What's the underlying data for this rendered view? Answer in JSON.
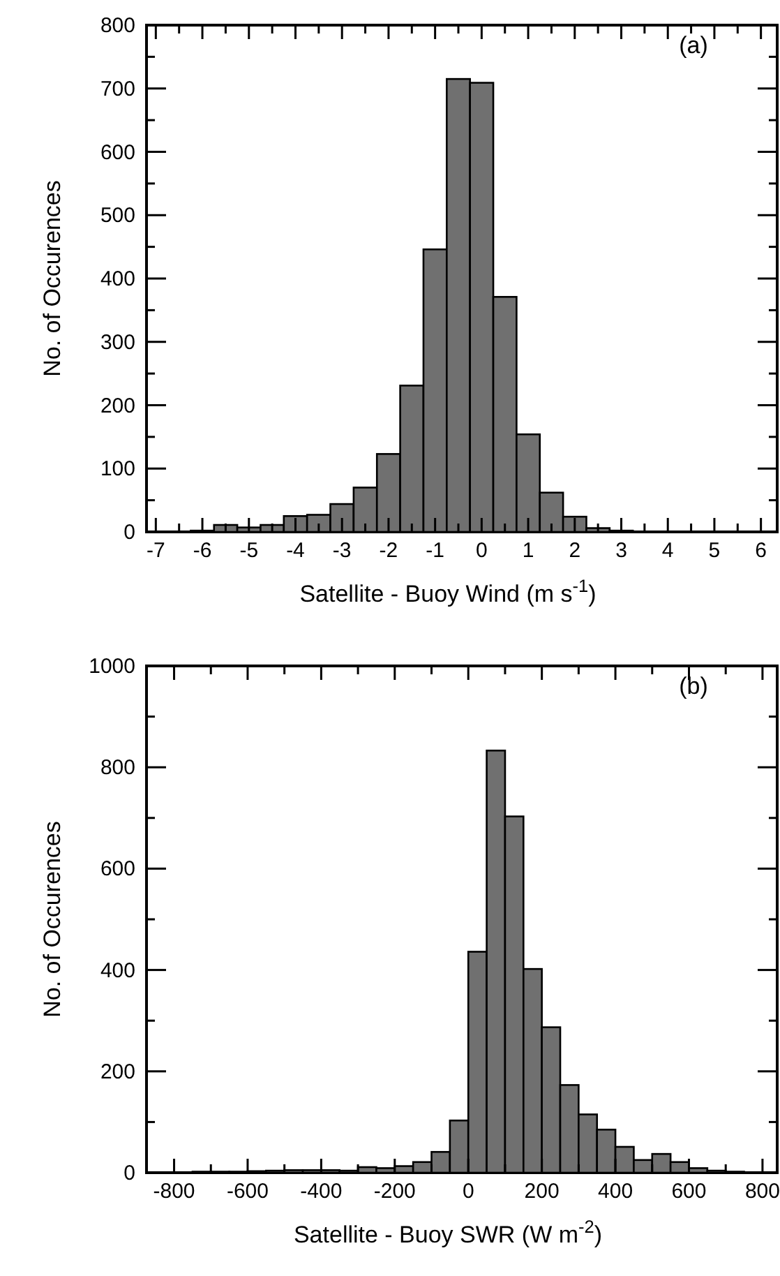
{
  "chart_data": [
    {
      "type": "histogram",
      "xlabel": "Satellite - Buoy Wind (m s$^{-1}$)",
      "ylabel": "No. of Occurences",
      "annotations": [
        "(a)"
      ],
      "color": "#707070",
      "bins": [
        -6.25,
        -5.75,
        -5.25,
        -4.75,
        -4.25,
        -3.75,
        -3.25,
        -2.75,
        -2.25,
        -1.75,
        -1.25,
        -0.75,
        -0.25,
        0.25,
        0.75,
        1.25,
        1.75,
        2.25,
        2.75,
        3.25
      ],
      "values": [
        2,
        11,
        7,
        11,
        25,
        27,
        44,
        70,
        123,
        231,
        446,
        715,
        709,
        371,
        154,
        62,
        24,
        6,
        2
      ],
      "xlim": [
        -7.2,
        6.35
      ],
      "xticks": [
        -7,
        {
          "value": -6.5,
          "label": null
        },
        -6,
        {
          "value": -5.5,
          "label": null
        },
        -5,
        {
          "value": -4.5,
          "label": null
        },
        -4,
        {
          "value": -3.5,
          "label": null
        },
        -3,
        {
          "value": -2.5,
          "label": null
        },
        -2,
        {
          "value": -1.5,
          "label": null
        },
        -1,
        {
          "value": -0.5,
          "label": null
        },
        0,
        {
          "value": 0.5,
          "label": null
        },
        1,
        {
          "value": 1.5,
          "label": null
        },
        2,
        {
          "value": 2.5,
          "label": null
        },
        3,
        {
          "value": 3.5,
          "label": null
        },
        4,
        {
          "value": 4.5,
          "label": null
        },
        5,
        {
          "value": 5.5,
          "label": null
        },
        6
      ],
      "ylim": [
        0,
        800
      ],
      "yticks": [
        0,
        {
          "value": 50,
          "label": null
        },
        100,
        {
          "value": 150,
          "label": null
        },
        200,
        {
          "value": 250,
          "label": null
        },
        300,
        {
          "value": 350,
          "label": null
        },
        400,
        {
          "value": 450,
          "label": null
        },
        500,
        {
          "value": 550,
          "label": null
        },
        600,
        {
          "value": 650,
          "label": null
        },
        700,
        {
          "value": 750,
          "label": null
        },
        800
      ]
    },
    {
      "type": "histogram",
      "xlabel": "Satellite - Buoy SWR (W m$^{-2}$)",
      "ylabel": "No. of Occurences",
      "annotations": [
        "(b)"
      ],
      "color": "#707070",
      "bins": [
        -750,
        -700,
        -650,
        -600,
        -550,
        -500,
        -450,
        -400,
        -350,
        -300,
        -250,
        -200,
        -150,
        -100,
        -50,
        0,
        50,
        100,
        150,
        200,
        250,
        300,
        350,
        400,
        450,
        500,
        550,
        600,
        650,
        700,
        750
      ],
      "values": [
        2,
        2,
        2,
        3,
        4,
        5,
        5,
        5,
        4,
        11,
        9,
        13,
        21,
        41,
        103,
        436,
        833,
        703,
        402,
        287,
        173,
        115,
        85,
        51,
        25,
        37,
        21,
        9,
        4,
        2
      ],
      "xlim": [
        -875,
        840
      ],
      "xticks": [
        -800,
        {
          "value": -700,
          "label": null
        },
        -600,
        {
          "value": -500,
          "label": null
        },
        -400,
        {
          "value": -300,
          "label": null
        },
        -200,
        {
          "value": -100,
          "label": null
        },
        0,
        {
          "value": 100,
          "label": null
        },
        200,
        {
          "value": 300,
          "label": null
        },
        400,
        {
          "value": 500,
          "label": null
        },
        600,
        {
          "value": 700,
          "label": null
        },
        800
      ],
      "ylim": [
        0,
        1000
      ],
      "yticks": [
        0,
        {
          "value": 100,
          "label": null
        },
        200,
        {
          "value": 300,
          "label": null
        },
        400,
        {
          "value": 500,
          "label": null
        },
        600,
        {
          "value": 700,
          "label": null
        },
        800,
        {
          "value": 900,
          "label": null
        },
        1000
      ]
    }
  ]
}
